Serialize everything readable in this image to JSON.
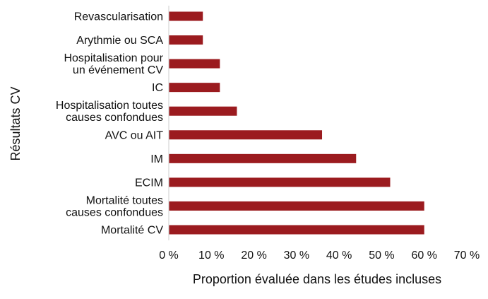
{
  "chart_data": {
    "type": "bar",
    "orientation": "horizontal",
    "ylabel": "Résultats CV",
    "xlabel": "Proportion évaluée dans les études incluses",
    "categories": [
      [
        "Revascularisation"
      ],
      [
        "Arythmie ou SCA"
      ],
      [
        "Hospitalisation pour",
        "un événement CV"
      ],
      [
        "IC"
      ],
      [
        "Hospitalisation toutes",
        "causes confondues"
      ],
      [
        "AVC ou AIT"
      ],
      [
        "IM"
      ],
      [
        "ECIM"
      ],
      [
        "Mortalité toutes",
        "causes confondues"
      ],
      [
        "Mortalité CV"
      ]
    ],
    "values": [
      8,
      8,
      12,
      12,
      16,
      36,
      44,
      52,
      60,
      60
    ],
    "xlim": [
      0,
      70
    ],
    "xticks": [
      0,
      10,
      20,
      30,
      40,
      50,
      60,
      70
    ],
    "tick_labels": [
      "0 %",
      "10 %",
      "20 %",
      "30 %",
      "40 %",
      "50 %",
      "60 %",
      "70 %"
    ],
    "bar_color": "#9b1b1f",
    "grid": false,
    "legend": "none"
  }
}
